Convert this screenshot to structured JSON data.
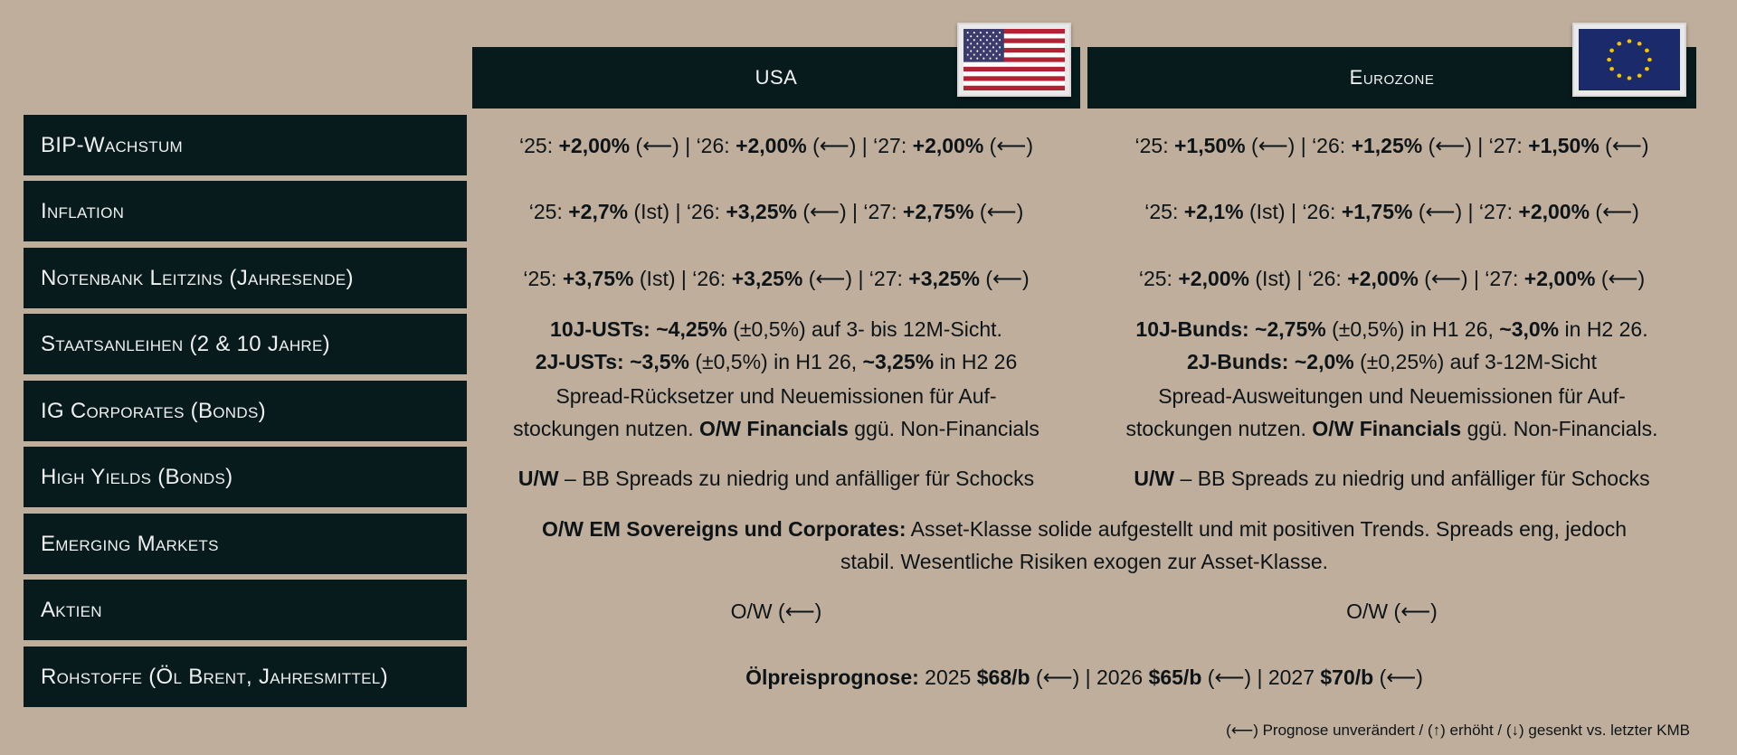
{
  "header": {
    "usa": "USA",
    "eurozone": "Eurozone"
  },
  "flags": {
    "usa": "us-flag-icon",
    "eurozone": "eu-flag-icon"
  },
  "colors": {
    "background": "#bfae9b",
    "panel": "#071a1c"
  },
  "rows": {
    "bip": {
      "label": "BIP-Wachstum",
      "us": {
        "a1": "‘25: ",
        "b1": "+2,00%",
        "a2": " (⟵) | ‘26: ",
        "b2": "+2,00%",
        "a3": " (⟵) | ‘27: ",
        "b3": "+2,00%",
        "a4": " (⟵)"
      },
      "eu": {
        "a1": "‘25: ",
        "b1": "+1,50%",
        "a2": " (⟵) | ‘26: ",
        "b2": "+1,25%",
        "a3": " (⟵) | ‘27: ",
        "b3": "+1,50%",
        "a4": " (⟵)"
      }
    },
    "inflation": {
      "label": "Inflation",
      "us": {
        "a1": "‘25: ",
        "b1": "+2,7%",
        "a2": " (Ist) | ‘26: ",
        "b2": "+3,25%",
        "a3": " (⟵) | ‘27: ",
        "b3": "+2,75%",
        "a4": " (⟵)"
      },
      "eu": {
        "a1": "‘25: ",
        "b1": "+2,1%",
        "a2": " (Ist) | ‘26: ",
        "b2": "+1,75%",
        "a3": " (⟵) | ‘27: ",
        "b3": "+2,00%",
        "a4": " (⟵)"
      }
    },
    "leitzins": {
      "label": "Notenbank Leitzins (Jahresende)",
      "us": {
        "a1": "‘25: ",
        "b1": "+3,75%",
        "a2": " (Ist) | ‘26: ",
        "b2": "+3,25%",
        "a3": " (⟵) | ‘27: ",
        "b3": "+3,25%",
        "a4": " (⟵)"
      },
      "eu": {
        "a1": "‘25: ",
        "b1": "+2,00%",
        "a2": " (Ist) | ‘26: ",
        "b2": "+2,00%",
        "a3": " (⟵) | ‘27: ",
        "b3": "+2,00%",
        "a4": " (⟵)"
      }
    },
    "staatsanleihen": {
      "label": "Staatsanleihen (2 & 10 Jahre)",
      "us": {
        "l1b1": "10J-USTs: ~4,25%",
        "l1a1": " (±0,5%) auf 3- bis 12M-Sicht.",
        "l2b1": "2J-USTs: ~3,5%",
        "l2a1": " (±0,5%) in H1 26, ",
        "l2b2": "~3,25%",
        "l2a2": " in H2 26"
      },
      "eu": {
        "l1b1": "10J-Bunds: ~2,75%",
        "l1a1": " (±0,5%) in H1 26, ",
        "l1b2": "~3,0%",
        "l1a2": " in H2 26.",
        "l2b1": "2J-Bunds: ~2,0%",
        "l2a1": " (±0,25%) auf 3-12M-Sicht"
      }
    },
    "ig": {
      "label": "IG Corporates (Bonds)",
      "us": {
        "l1": "Spread-Rücksetzer und Neuemissionen für Auf-",
        "l2a1": "stockungen nutzen. ",
        "l2b1": "O/W Financials",
        "l2a2": " ggü. Non-Financials"
      },
      "eu": {
        "l1": "Spread-Ausweitungen und Neuemissionen für Auf-",
        "l2a1": "stockungen nutzen. ",
        "l2b1": "O/W Financials",
        "l2a2": " ggü. Non-Financials."
      }
    },
    "hy": {
      "label": "High Yields (Bonds)",
      "us": {
        "b1": "U/W",
        "a1": " – BB Spreads zu niedrig und anfälliger für Schocks"
      },
      "eu": {
        "b1": "U/W",
        "a1": " – BB Spreads zu niedrig und anfälliger für Schocks"
      }
    },
    "em": {
      "label": "Emerging Markets",
      "text": {
        "b1": "O/W EM Sovereigns und Corporates:",
        "a1": " Asset-Klasse solide aufgestellt und mit positiven Trends. Spreads eng, jedoch",
        "l2": "stabil. Wesentliche Risiken exogen zur Asset-Klasse."
      }
    },
    "aktien": {
      "label": "Aktien",
      "us": "O/W (⟵)",
      "eu": "O/W (⟵)"
    },
    "rohstoffe": {
      "label": "Rohstoffe (Öl Brent, Jahresmittel)",
      "text": {
        "b1": "Ölpreisprognose:",
        "a1": " 2025 ",
        "b2": "$68/b",
        "a2": " (⟵) | 2026 ",
        "b3": "$65/b",
        "a3": " (⟵) | 2027 ",
        "b4": "$70/b",
        "a4": " (⟵)"
      }
    }
  },
  "footnote": "(⟵) Prognose unverändert / (↑) erhöht / (↓) gesenkt vs. letzter KMB"
}
